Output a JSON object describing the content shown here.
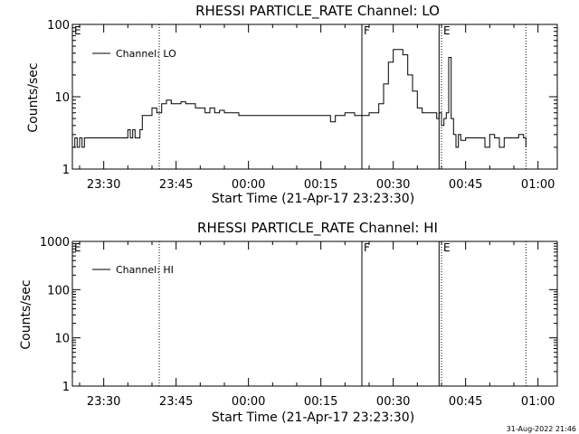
{
  "footer": {
    "timestamp": "31-Aug-2022 21:46"
  },
  "chart_data": [
    {
      "type": "line",
      "title": "RHESSI PARTICLE_RATE Channel: LO",
      "xlabel": "Start Time (21-Apr-17 23:23:30)",
      "ylabel": "Counts/sec",
      "yscale": "log",
      "ylim": [
        1,
        100
      ],
      "xlim": [
        "23:23:30",
        "01:04:00"
      ],
      "x_ticks": [
        "23:30",
        "23:45",
        "00:00",
        "00:15",
        "00:30",
        "00:45",
        "01:00"
      ],
      "y_ticks": [
        "1",
        "10",
        "100"
      ],
      "legend": {
        "position": "top-left"
      },
      "series": [
        {
          "name": "Channel: LO",
          "color": "#000000",
          "x": [
            "23:23:30",
            "23:24:00",
            "23:24:30",
            "23:25:00",
            "23:25:30",
            "23:26:00",
            "23:27:00",
            "23:28:00",
            "23:30:00",
            "23:32:00",
            "23:34:00",
            "23:35:00",
            "23:35:30",
            "23:36:00",
            "23:36:30",
            "23:37:00",
            "23:37:30",
            "23:38:00",
            "23:38:30",
            "23:39:00",
            "23:40:00",
            "23:41:00",
            "23:42:00",
            "23:43:00",
            "23:44:00",
            "23:45:00",
            "23:46:00",
            "23:47:00",
            "23:48:00",
            "23:49:00",
            "23:50:00",
            "23:51:00",
            "23:52:00",
            "23:53:00",
            "23:54:00",
            "23:55:00",
            "23:56:00",
            "23:57:00",
            "23:58:00",
            "23:59:00",
            "00:00:00",
            "00:02:00",
            "00:04:00",
            "00:06:00",
            "00:08:00",
            "00:10:00",
            "00:12:00",
            "00:13:00",
            "00:14:00",
            "00:15:00",
            "00:16:00",
            "00:17:00",
            "00:18:00",
            "00:19:00",
            "00:20:00",
            "00:21:00",
            "00:22:00",
            "00:23:00",
            "00:24:00",
            "00:25:00",
            "00:26:00",
            "00:27:00",
            "00:28:00",
            "00:29:00",
            "00:30:00",
            "00:31:00",
            "00:32:00",
            "00:33:00",
            "00:34:00",
            "00:35:00",
            "00:36:00",
            "00:37:00",
            "00:38:00",
            "00:39:00",
            "00:39:30",
            "00:40:00",
            "00:40:30",
            "00:41:00",
            "00:41:30",
            "00:42:00",
            "00:42:30",
            "00:43:00",
            "00:43:30",
            "00:44:00",
            "00:45:00",
            "00:46:00",
            "00:47:00",
            "00:48:00",
            "00:49:00",
            "00:50:00",
            "00:51:00",
            "00:52:00",
            "00:53:00",
            "00:54:00",
            "00:55:00",
            "00:56:00",
            "00:57:00",
            "00:57:30"
          ],
          "y": [
            2.0,
            2.7,
            2.0,
            2.7,
            2.0,
            2.7,
            2.7,
            2.7,
            2.7,
            2.7,
            2.7,
            3.5,
            2.7,
            3.5,
            2.7,
            2.7,
            3.5,
            5.5,
            5.5,
            5.5,
            7.0,
            6.0,
            8.0,
            9.0,
            8.0,
            8.0,
            8.5,
            8.0,
            8.0,
            7.0,
            7.0,
            6.0,
            7.0,
            6.0,
            6.5,
            6.0,
            6.0,
            6.0,
            5.5,
            5.5,
            5.5,
            5.5,
            5.5,
            5.5,
            5.5,
            5.5,
            5.5,
            5.5,
            5.5,
            5.5,
            5.5,
            4.5,
            5.5,
            5.5,
            6.0,
            6.0,
            5.5,
            5.5,
            5.5,
            6.0,
            6.0,
            8.0,
            15.0,
            30.0,
            45.0,
            45.0,
            38.0,
            20.0,
            12.0,
            7.0,
            6.0,
            6.0,
            6.0,
            5.0,
            6.0,
            4.0,
            5.0,
            6.0,
            35.0,
            5.0,
            3.0,
            2.0,
            3.0,
            2.5,
            2.7,
            2.7,
            2.7,
            2.7,
            2.0,
            3.0,
            2.7,
            2.0,
            2.7,
            2.7,
            2.7,
            3.0,
            2.7,
            2.0
          ]
        }
      ],
      "annotations": [
        {
          "label": "E",
          "x": "23:23:30",
          "style": "dotted"
        },
        {
          "label": "",
          "x": "23:41:30",
          "style": "dotted"
        },
        {
          "label": "F",
          "x": "00:23:30",
          "style": "solid"
        },
        {
          "label": "",
          "x": "00:39:30",
          "style": "solid"
        },
        {
          "label": "E",
          "x": "00:40:00",
          "style": "dotted"
        },
        {
          "label": "",
          "x": "00:57:30",
          "style": "dotted"
        }
      ]
    },
    {
      "type": "line",
      "title": "RHESSI PARTICLE_RATE Channel: HI",
      "xlabel": "Start Time (21-Apr-17 23:23:30)",
      "ylabel": "Counts/sec",
      "yscale": "log",
      "ylim": [
        1,
        1000
      ],
      "xlim": [
        "23:23:30",
        "01:04:00"
      ],
      "x_ticks": [
        "23:30",
        "23:45",
        "00:00",
        "00:15",
        "00:30",
        "00:45",
        "01:00"
      ],
      "y_ticks": [
        "1",
        "10",
        "100",
        "1000"
      ],
      "legend": {
        "position": "top-left"
      },
      "series": [
        {
          "name": "Channel: HI",
          "color": "#000000",
          "x": [],
          "y": []
        }
      ],
      "annotations": [
        {
          "label": "E",
          "x": "23:23:30",
          "style": "dotted"
        },
        {
          "label": "",
          "x": "23:41:30",
          "style": "dotted"
        },
        {
          "label": "F",
          "x": "00:23:30",
          "style": "solid"
        },
        {
          "label": "",
          "x": "00:39:30",
          "style": "solid"
        },
        {
          "label": "E",
          "x": "00:40:00",
          "style": "dotted"
        },
        {
          "label": "",
          "x": "00:57:30",
          "style": "dotted"
        }
      ]
    }
  ]
}
